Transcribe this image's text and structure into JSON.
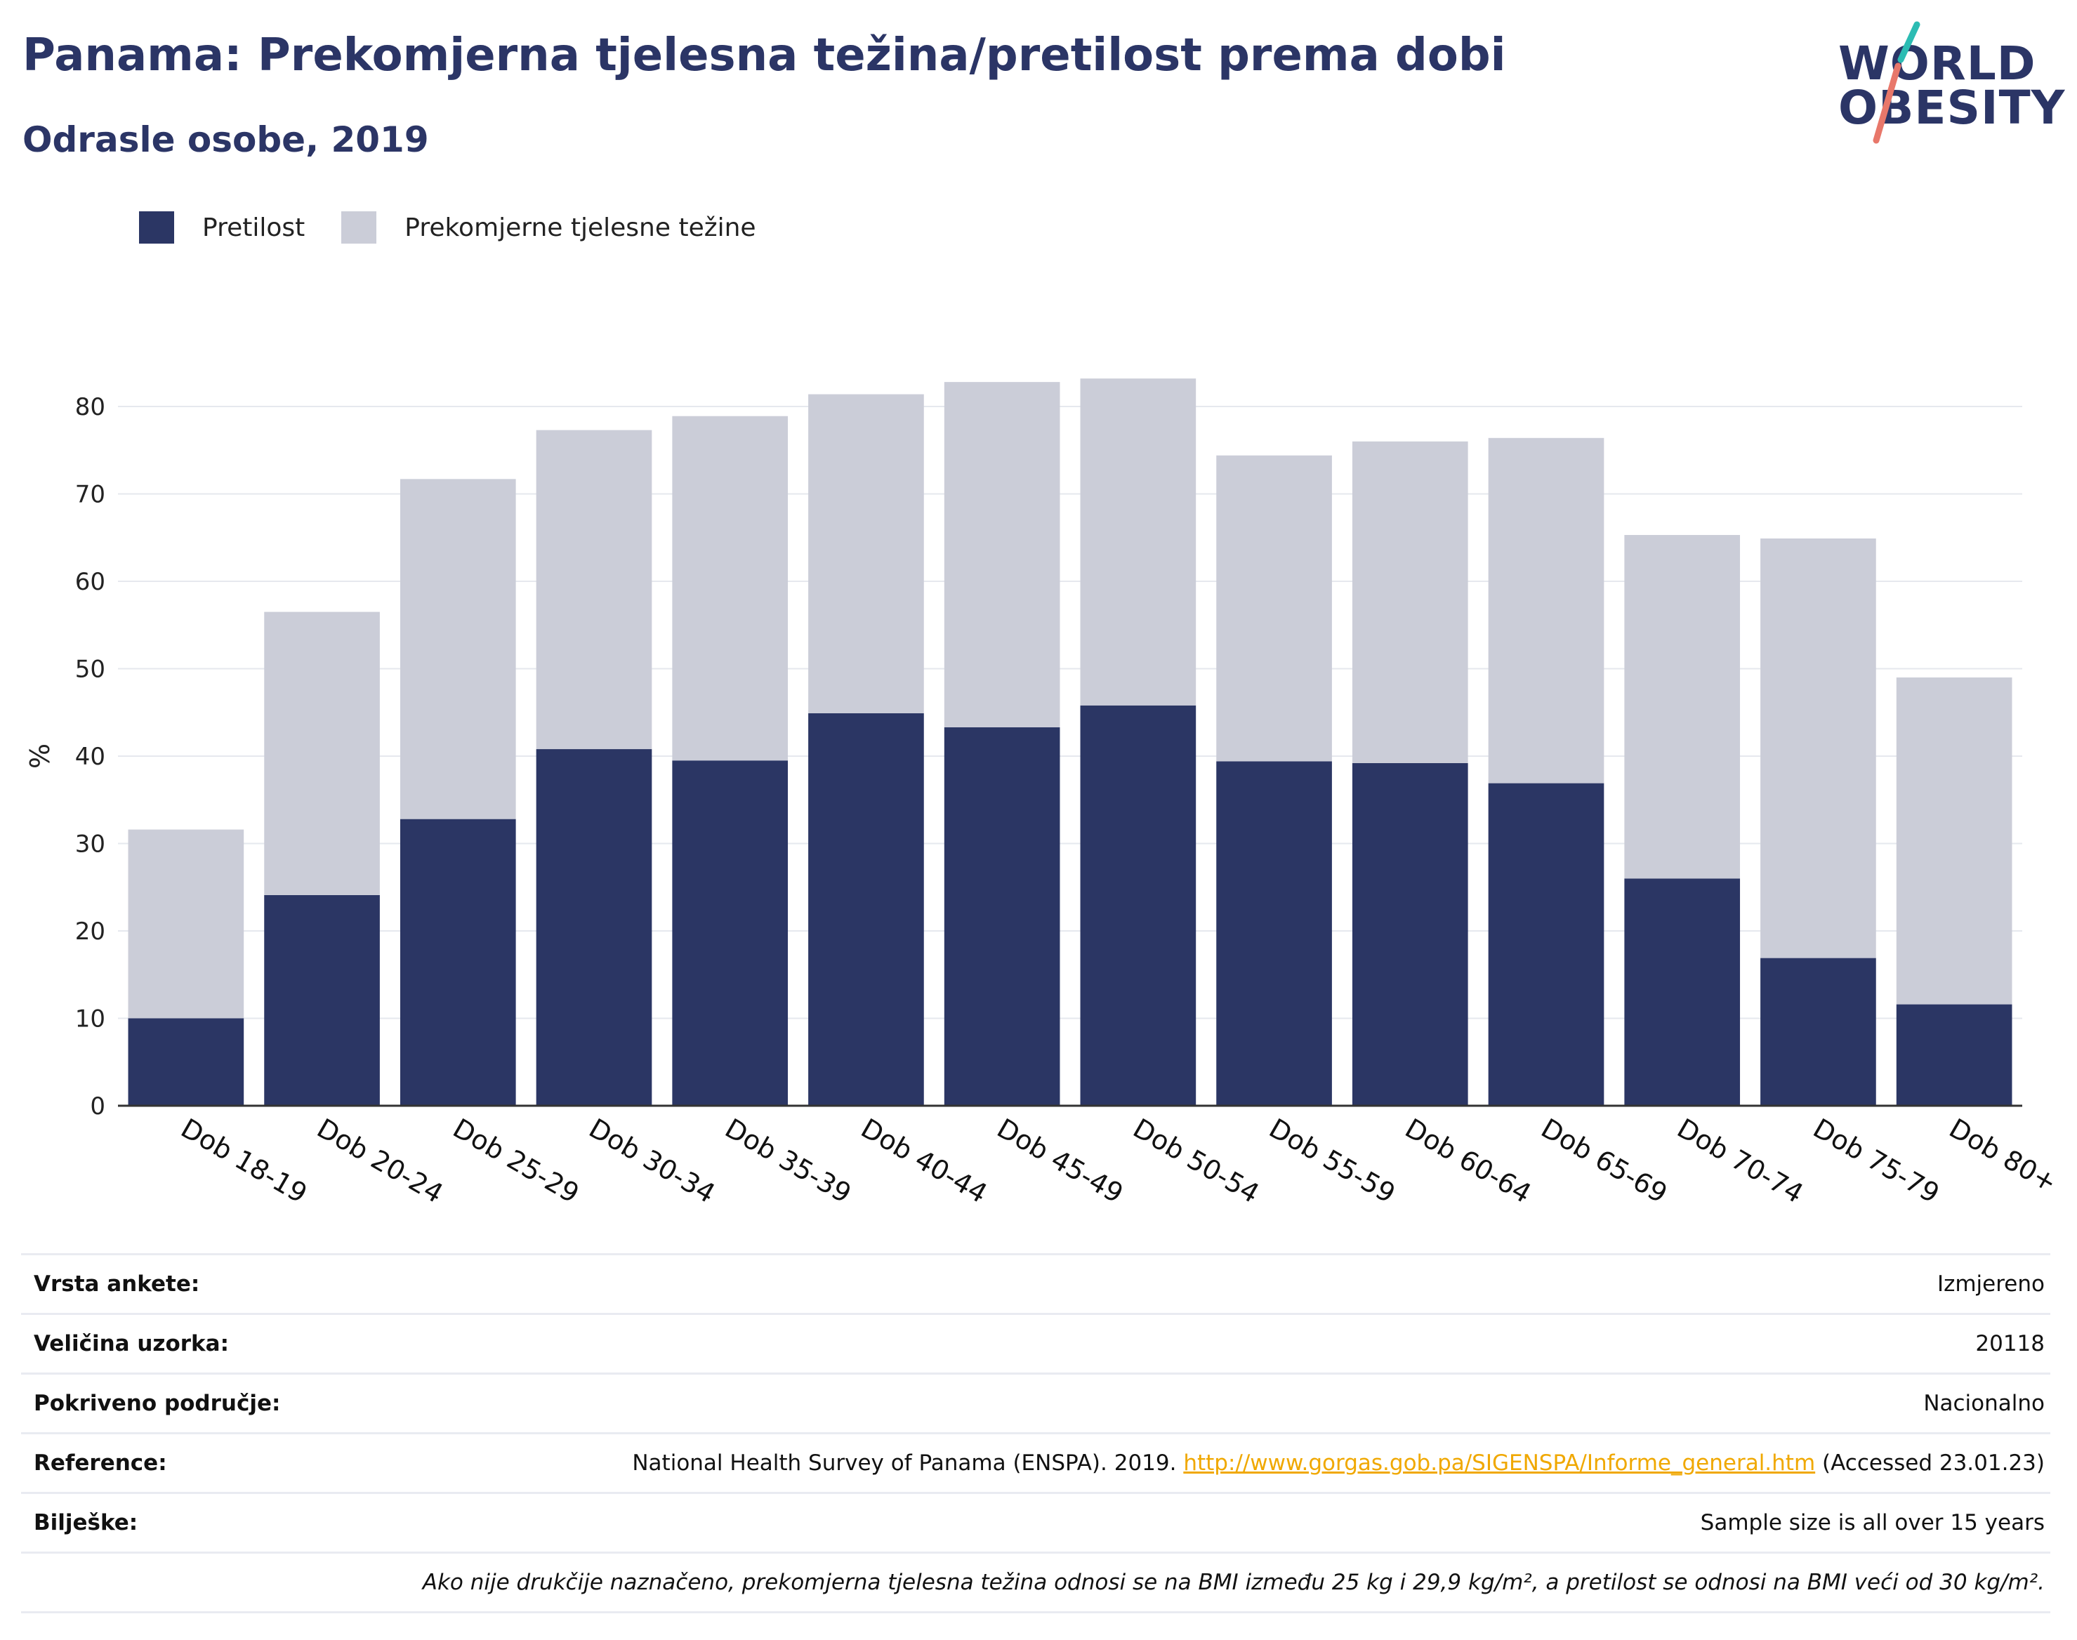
{
  "header": {
    "title": "Panama: Prekomjerna tjelesna težina/pretilost prema dobi",
    "subtitle": "Odrasle osobe, 2019"
  },
  "logo": {
    "line1": "WORLD",
    "line2": "OBESITY",
    "name": "world-obesity-logo"
  },
  "legend": [
    {
      "label": "Pretilost",
      "color": "#2b3664"
    },
    {
      "label": "Prekomjerne tjelesne težine",
      "color": "#cbcdd8"
    }
  ],
  "chart_data": {
    "type": "bar",
    "stacked": true,
    "ylabel": "%",
    "xlabel": "",
    "ylim": [
      0,
      84
    ],
    "yticks": [
      0,
      10,
      20,
      30,
      40,
      50,
      60,
      70,
      80
    ],
    "grid": true,
    "legend_position": "top-left",
    "categories": [
      "Dob 18-19",
      "Dob 20-24",
      "Dob 25-29",
      "Dob 30-34",
      "Dob 35-39",
      "Dob 40-44",
      "Dob 45-49",
      "Dob 50-54",
      "Dob 55-59",
      "Dob 60-64",
      "Dob 65-69",
      "Dob 70-74",
      "Dob 75-79",
      "Dob 80+"
    ],
    "series": [
      {
        "name": "Pretilost",
        "color": "#2b3664",
        "values": [
          10.0,
          24.1,
          32.8,
          40.8,
          39.5,
          44.9,
          43.3,
          45.8,
          39.4,
          39.2,
          36.9,
          26.0,
          16.9,
          11.6
        ]
      },
      {
        "name": "Prekomjerne tjelesne težine",
        "color": "#cbcdd8",
        "values": [
          21.6,
          32.4,
          38.9,
          36.5,
          39.4,
          36.5,
          39.5,
          37.4,
          35.0,
          36.8,
          39.5,
          39.3,
          48.0,
          37.4
        ]
      }
    ]
  },
  "info": {
    "rows": [
      {
        "key": "Vrsta ankete:",
        "value": "Izmjereno"
      },
      {
        "key": "Veličina uzorka:",
        "value": "20118"
      },
      {
        "key": "Pokriveno područje:",
        "value": "Nacionalno"
      },
      {
        "key": "Reference:",
        "value_prefix": "National Health Survey of Panama (ENSPA). 2019. ",
        "link": "http://www.gorgas.gob.pa/SIGENSPA/Informe_general.htm",
        "value_suffix": " (Accessed 23.01.23)"
      },
      {
        "key": "Bilješke:",
        "value": "Sample size is all over 15 years"
      }
    ],
    "note": "Ako nije drukčije naznačeno, prekomjerna tjelesna težina odnosi se na BMI između 25 kg i 29,9 kg/m², a pretilost se odnosi na BMI veći od 30 kg/m²."
  }
}
